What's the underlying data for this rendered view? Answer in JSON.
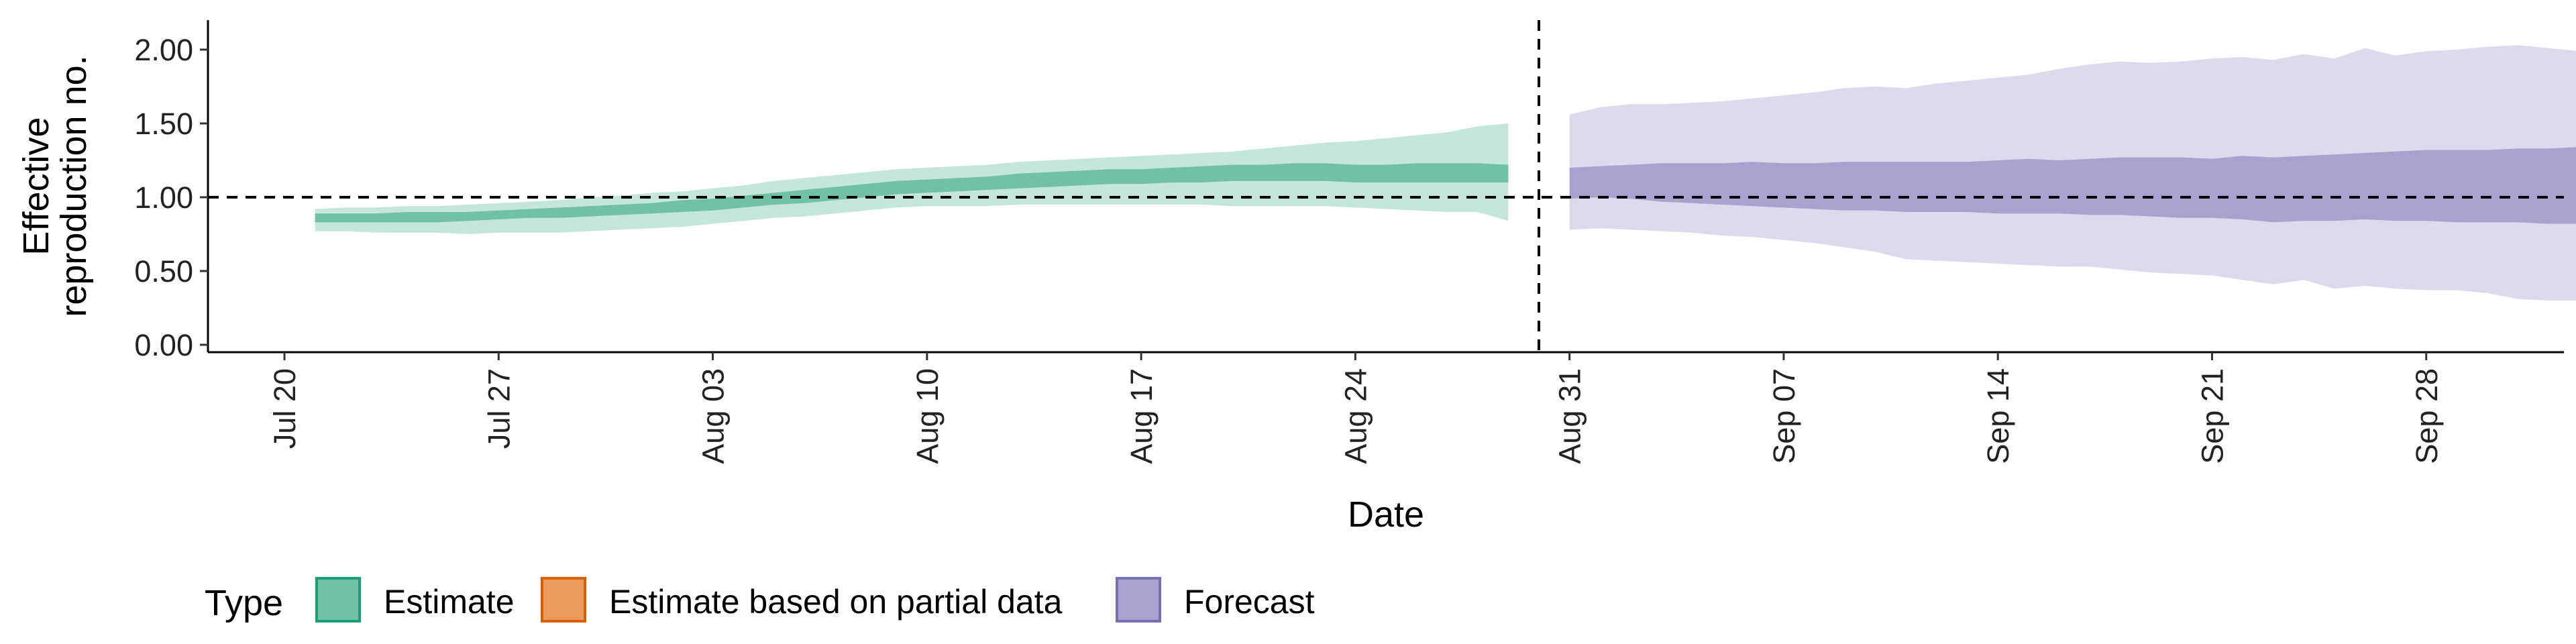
{
  "chart_data": {
    "type": "area",
    "xlabel": "Date",
    "ylabel_lines": [
      "Effective",
      "reproduction no."
    ],
    "ylim": [
      -0.05,
      2.2
    ],
    "y_ticks": [
      {
        "value": 0.0,
        "label": "0.00"
      },
      {
        "value": 0.5,
        "label": "0.50"
      },
      {
        "value": 1.0,
        "label": "1.00"
      },
      {
        "value": 1.5,
        "label": "1.50"
      },
      {
        "value": 2.0,
        "label": "2.00"
      }
    ],
    "x_ticks": [
      {
        "day": 0,
        "label": "Jul 20"
      },
      {
        "day": 7,
        "label": "Jul 27"
      },
      {
        "day": 14,
        "label": "Aug 03"
      },
      {
        "day": 21,
        "label": "Aug 10"
      },
      {
        "day": 28,
        "label": "Aug 17"
      },
      {
        "day": 35,
        "label": "Aug 24"
      },
      {
        "day": 42,
        "label": "Aug 31"
      },
      {
        "day": 49,
        "label": "Sep 07"
      },
      {
        "day": 56,
        "label": "Sep 14"
      },
      {
        "day": 63,
        "label": "Sep 21"
      },
      {
        "day": 70,
        "label": "Sep 28"
      }
    ],
    "x_range_days": [
      -2.5,
      74.5
    ],
    "reference_line_y": 1.0,
    "vertical_line_day": 41,
    "grid": false,
    "legend_position": "bottom",
    "series": [
      {
        "name": "Estimate",
        "color": "#1b9e77",
        "start_day": 1,
        "outer_lower": [
          0.77,
          0.77,
          0.76,
          0.76,
          0.76,
          0.75,
          0.76,
          0.76,
          0.76,
          0.77,
          0.78,
          0.79,
          0.8,
          0.82,
          0.84,
          0.86,
          0.87,
          0.89,
          0.91,
          0.93,
          0.94,
          0.94,
          0.94,
          0.95,
          0.95,
          0.95,
          0.95,
          0.95,
          0.95,
          0.95,
          0.94,
          0.94,
          0.94,
          0.94,
          0.93,
          0.92,
          0.91,
          0.9,
          0.9,
          0.84
        ],
        "outer_upper": [
          0.92,
          0.93,
          0.93,
          0.94,
          0.94,
          0.95,
          0.96,
          0.97,
          0.98,
          1.0,
          1.01,
          1.03,
          1.04,
          1.06,
          1.08,
          1.11,
          1.13,
          1.15,
          1.17,
          1.19,
          1.2,
          1.21,
          1.22,
          1.24,
          1.25,
          1.26,
          1.27,
          1.28,
          1.29,
          1.3,
          1.31,
          1.33,
          1.35,
          1.37,
          1.38,
          1.4,
          1.42,
          1.44,
          1.48,
          1.5
        ],
        "inner_lower": [
          0.83,
          0.83,
          0.83,
          0.83,
          0.83,
          0.84,
          0.85,
          0.86,
          0.86,
          0.87,
          0.88,
          0.89,
          0.9,
          0.91,
          0.93,
          0.95,
          0.96,
          0.98,
          1.0,
          1.02,
          1.03,
          1.04,
          1.05,
          1.06,
          1.07,
          1.08,
          1.09,
          1.09,
          1.1,
          1.1,
          1.11,
          1.11,
          1.11,
          1.11,
          1.1,
          1.1,
          1.1,
          1.1,
          1.1,
          1.1
        ],
        "inner_upper": [
          0.89,
          0.89,
          0.89,
          0.9,
          0.9,
          0.9,
          0.91,
          0.92,
          0.93,
          0.94,
          0.95,
          0.96,
          0.98,
          0.99,
          1.01,
          1.03,
          1.05,
          1.07,
          1.09,
          1.11,
          1.12,
          1.13,
          1.14,
          1.16,
          1.17,
          1.18,
          1.19,
          1.19,
          1.2,
          1.21,
          1.22,
          1.22,
          1.23,
          1.23,
          1.22,
          1.22,
          1.23,
          1.23,
          1.23,
          1.22
        ]
      },
      {
        "name": "Estimate based on partial data",
        "color": "#d95f02",
        "values": []
      },
      {
        "name": "Forecast",
        "color": "#7570b3",
        "start_day": 42,
        "outer_lower": [
          0.78,
          0.79,
          0.78,
          0.77,
          0.76,
          0.74,
          0.73,
          0.71,
          0.69,
          0.66,
          0.63,
          0.58,
          0.57,
          0.56,
          0.55,
          0.54,
          0.53,
          0.53,
          0.51,
          0.49,
          0.48,
          0.47,
          0.44,
          0.41,
          0.44,
          0.38,
          0.4,
          0.38,
          0.37,
          0.37,
          0.35,
          0.31,
          0.3,
          0.3,
          0.32,
          0.29,
          0.28,
          0.3
        ],
        "outer_upper": [
          1.56,
          1.61,
          1.63,
          1.63,
          1.64,
          1.65,
          1.67,
          1.69,
          1.71,
          1.74,
          1.75,
          1.74,
          1.77,
          1.79,
          1.81,
          1.83,
          1.87,
          1.9,
          1.92,
          1.91,
          1.92,
          1.94,
          1.95,
          1.93,
          1.97,
          1.94,
          2.01,
          1.96,
          1.99,
          2.0,
          2.02,
          2.03,
          2.01,
          1.99,
          2.04,
          2.01,
          2.02,
          2.08
        ],
        "inner_lower": [
          0.99,
          1.0,
          0.99,
          0.97,
          0.96,
          0.95,
          0.94,
          0.93,
          0.92,
          0.91,
          0.91,
          0.9,
          0.9,
          0.9,
          0.89,
          0.89,
          0.89,
          0.88,
          0.88,
          0.87,
          0.86,
          0.86,
          0.85,
          0.83,
          0.84,
          0.84,
          0.85,
          0.84,
          0.84,
          0.83,
          0.83,
          0.83,
          0.82,
          0.82,
          0.83,
          0.83,
          0.79,
          0.79
        ],
        "inner_upper": [
          1.2,
          1.21,
          1.22,
          1.23,
          1.23,
          1.23,
          1.24,
          1.23,
          1.23,
          1.24,
          1.24,
          1.24,
          1.24,
          1.24,
          1.25,
          1.26,
          1.25,
          1.26,
          1.27,
          1.27,
          1.27,
          1.26,
          1.28,
          1.27,
          1.28,
          1.29,
          1.3,
          1.31,
          1.32,
          1.32,
          1.32,
          1.33,
          1.33,
          1.34,
          1.35,
          1.31,
          1.3,
          1.3
        ]
      }
    ]
  },
  "legend": {
    "title": "Type",
    "items": [
      {
        "label": "Estimate",
        "fill": "#70c1a5",
        "stroke": "#1b9e77"
      },
      {
        "label": "Estimate based on partial data",
        "fill": "#eb9b5d",
        "stroke": "#d95f02"
      },
      {
        "label": "Forecast",
        "fill": "#a6a3cf",
        "stroke": "#7570b3"
      }
    ]
  },
  "colors": {
    "estimate_outer": "#c5e6db",
    "estimate_inner": "#70c1a5",
    "forecast_outer": "#dcdaec",
    "forecast_inner": "#a6a3cf"
  }
}
